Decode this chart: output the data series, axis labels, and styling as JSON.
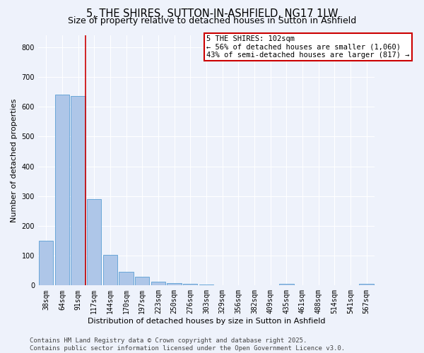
{
  "title": "5, THE SHIRES, SUTTON-IN-ASHFIELD, NG17 1LW",
  "subtitle": "Size of property relative to detached houses in Sutton in Ashfield",
  "xlabel": "Distribution of detached houses by size in Sutton in Ashfield",
  "ylabel": "Number of detached properties",
  "bin_labels": [
    "38sqm",
    "64sqm",
    "91sqm",
    "117sqm",
    "144sqm",
    "170sqm",
    "197sqm",
    "223sqm",
    "250sqm",
    "276sqm",
    "303sqm",
    "329sqm",
    "356sqm",
    "382sqm",
    "409sqm",
    "435sqm",
    "461sqm",
    "488sqm",
    "514sqm",
    "541sqm",
    "567sqm"
  ],
  "bar_values": [
    150,
    640,
    635,
    290,
    103,
    45,
    30,
    13,
    8,
    5,
    2,
    0,
    0,
    0,
    0,
    5,
    0,
    0,
    0,
    0,
    5
  ],
  "bar_color": "#aec6e8",
  "bar_edge_color": "#5a9fd4",
  "annotation_text": "5 THE SHIRES: 102sqm\n← 56% of detached houses are smaller (1,060)\n43% of semi-detached houses are larger (817) →",
  "annotation_box_color": "#ffffff",
  "annotation_box_edge_color": "#cc0000",
  "vline_color": "#cc0000",
  "ylim": [
    0,
    840
  ],
  "yticks": [
    0,
    100,
    200,
    300,
    400,
    500,
    600,
    700,
    800
  ],
  "footer_text": "Contains HM Land Registry data © Crown copyright and database right 2025.\nContains public sector information licensed under the Open Government Licence v3.0.",
  "background_color": "#eef2fb",
  "grid_color": "#ffffff",
  "title_fontsize": 10.5,
  "subtitle_fontsize": 9,
  "axis_label_fontsize": 8,
  "tick_fontsize": 7,
  "annotation_fontsize": 7.5,
  "footer_fontsize": 6.5
}
